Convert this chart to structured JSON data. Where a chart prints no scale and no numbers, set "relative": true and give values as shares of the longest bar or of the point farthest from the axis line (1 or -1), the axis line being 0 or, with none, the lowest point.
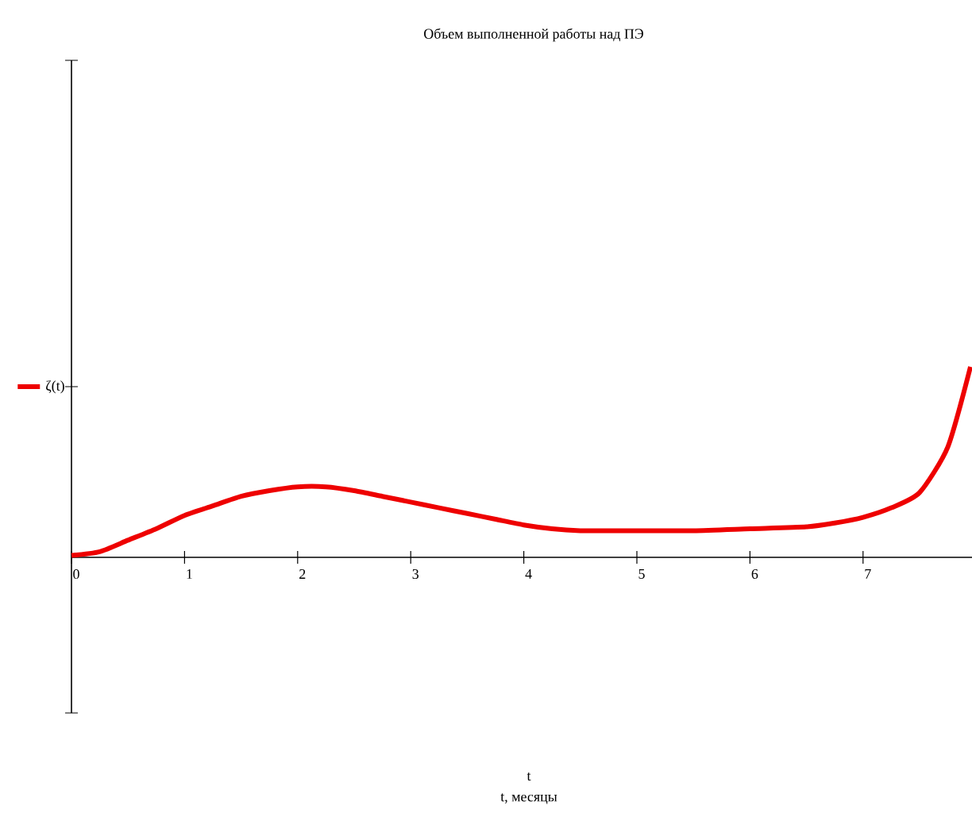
{
  "chart_data": {
    "type": "line",
    "title": "Объем выполненной работы над ПЭ",
    "annotations": [
      "t",
      "t, месяцы"
    ],
    "relative": true,
    "xlim": [
      0,
      8
    ],
    "xticks": [
      0,
      1,
      2,
      3,
      4,
      5,
      6,
      7
    ],
    "legend": "left",
    "grid": false,
    "marker": "none",
    "line_style": "solid",
    "series": [
      {
        "name": "ζ(t)",
        "color": "#ee0000",
        "x": [
          0,
          0.25,
          0.5,
          0.75,
          1,
          1.25,
          1.5,
          1.75,
          2,
          2.25,
          2.5,
          2.75,
          3,
          3.25,
          3.5,
          3.75,
          4,
          4.25,
          4.5,
          4.75,
          5,
          5.5,
          6,
          6.5,
          6.75,
          7,
          7.25,
          7.5,
          7.75,
          7.95
        ],
        "values": [
          0.01,
          0.03,
          0.09,
          0.15,
          0.22,
          0.27,
          0.32,
          0.35,
          0.37,
          0.37,
          0.35,
          0.32,
          0.29,
          0.26,
          0.23,
          0.2,
          0.17,
          0.15,
          0.14,
          0.14,
          0.14,
          0.14,
          0.15,
          0.16,
          0.18,
          0.21,
          0.26,
          0.34,
          0.58,
          1
        ]
      }
    ]
  }
}
